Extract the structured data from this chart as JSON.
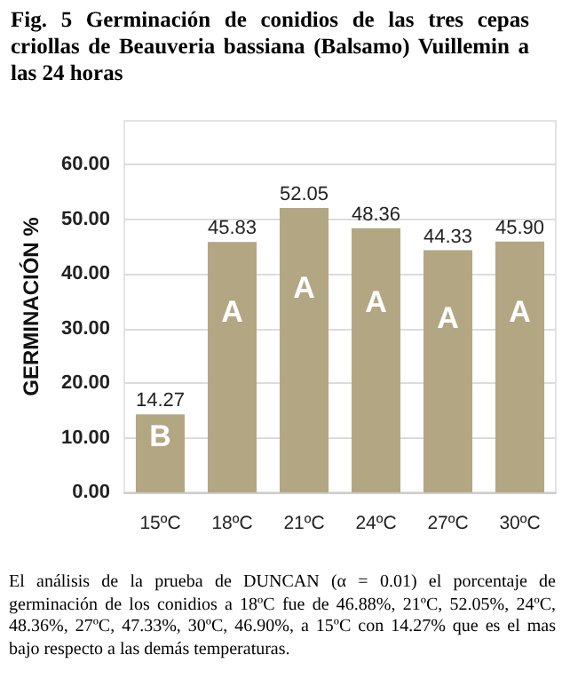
{
  "chart_data": {
    "type": "bar",
    "title": "Fig. 5 Germinación de conidios de las tres cepas criollas de Beauveria bassiana (Balsamo) Vuillemin a las 24 horas",
    "ylabel": "GERMINACIÓN %",
    "categories": [
      "15ºC",
      "18ºC",
      "21ºC",
      "24ºC",
      "27ºC",
      "30ºC"
    ],
    "values": [
      14.27,
      45.83,
      52.05,
      48.36,
      44.33,
      45.9
    ],
    "value_labels": [
      "14.27",
      "45.83",
      "52.05",
      "48.36",
      "44.33",
      "45.90"
    ],
    "color": "#b3a683",
    "ylim": [
      0,
      68
    ],
    "yticks": [
      {
        "value": 0,
        "label": "0.00"
      },
      {
        "value": 10,
        "label": "10.00"
      },
      {
        "value": 20,
        "label": "20.00"
      },
      {
        "value": 30,
        "label": "30.00"
      },
      {
        "value": 40,
        "label": "40.00"
      },
      {
        "value": 50,
        "label": "50.00"
      },
      {
        "value": 60,
        "label": "60.00"
      }
    ],
    "grid": "y",
    "annotations": [
      "B",
      "A",
      "A",
      "A",
      "A",
      "A",
      "El análisis de la prueba de DUNCAN (α = 0.01) el porcentaje de germinación de los conidios a 18ºC fue de 46.88%, 21ºC, 52.05%, 24ºC, 48.36%, 27ºC, 47.33%, 30ºC, 46.90%, a 15ºC con 14.27% que es el mas bajo respecto a las demás temperaturas."
    ]
  }
}
